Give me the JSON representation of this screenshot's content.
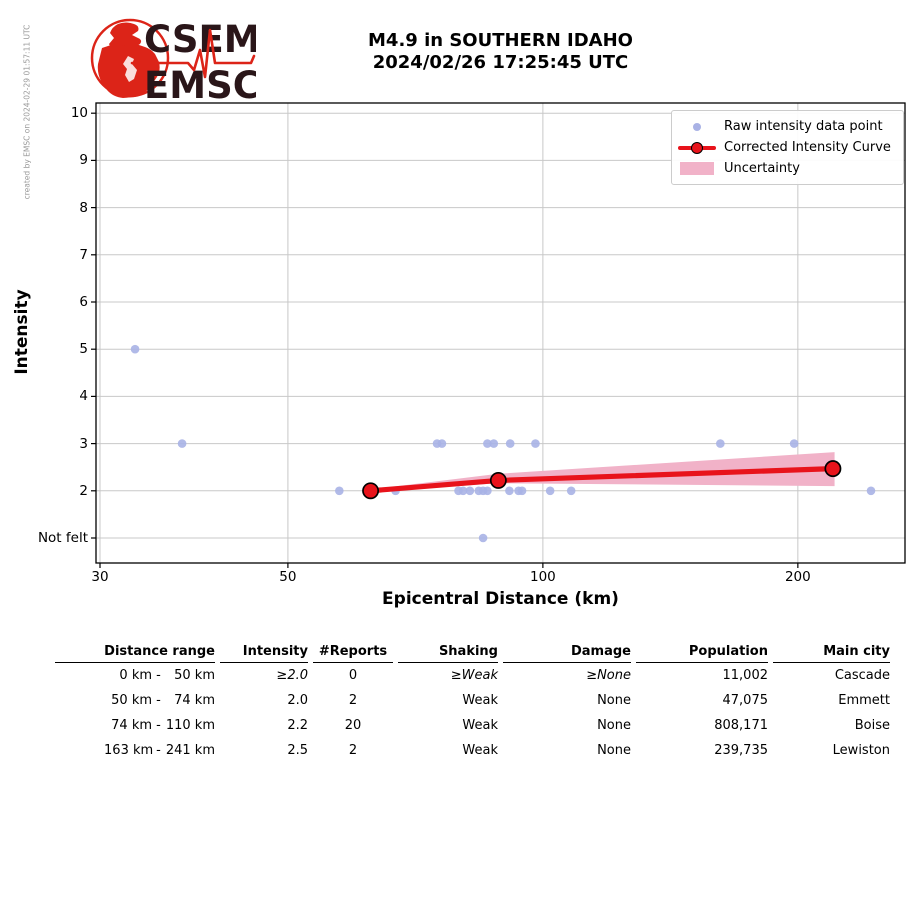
{
  "credit": "created by EMSC on 2024-02-29 01:57:11 UTC",
  "logo": {
    "acronym_top": "CSEM",
    "acronym_bottom": "EMSC",
    "red": "#dc2418",
    "dark": "#2a1619"
  },
  "title": {
    "line1": "M4.9 in SOUTHERN IDAHO",
    "line2": "2024/02/26 17:25:45 UTC"
  },
  "legend": {
    "raw_label": "Raw intensity data point",
    "curve_label": "Corrected Intensity Curve",
    "band_label": "Uncertainty"
  },
  "chart_data": {
    "type": "scatter",
    "title": "M4.9 in SOUTHERN IDAHO 2024/02/26 17:25:45 UTC",
    "xlabel": "Epicentral Distance (km)",
    "ylabel": "Intensity",
    "x_scale": "log",
    "xlim": [
      29.7,
      267
    ],
    "ylim": [
      0.47,
      10.22
    ],
    "grid": true,
    "legend_position": "upper right",
    "not_felt_value": 1,
    "xticks": [
      {
        "value": 30,
        "label": "30"
      },
      {
        "value": 50,
        "label": "50"
      },
      {
        "value": 100,
        "label": "100"
      },
      {
        "value": 200,
        "label": "200"
      }
    ],
    "yticks": [
      {
        "value": 10,
        "label": "10"
      },
      {
        "value": 9,
        "label": "9"
      },
      {
        "value": 8,
        "label": "8"
      },
      {
        "value": 7,
        "label": "7"
      },
      {
        "value": 6,
        "label": "6"
      },
      {
        "value": 5,
        "label": "5"
      },
      {
        "value": 4,
        "label": "4"
      },
      {
        "value": 3,
        "label": "3"
      },
      {
        "value": 2,
        "label": "2"
      },
      {
        "value": 1,
        "label": "Not felt"
      }
    ],
    "raw_points": [
      [
        33,
        5
      ],
      [
        37.5,
        3
      ],
      [
        57.5,
        2
      ],
      [
        67,
        2
      ],
      [
        75,
        3
      ],
      [
        76,
        3
      ],
      [
        79.5,
        2
      ],
      [
        80.5,
        2
      ],
      [
        82,
        2
      ],
      [
        84,
        2
      ],
      [
        85,
        2
      ],
      [
        86,
        2
      ],
      [
        86,
        3
      ],
      [
        87.5,
        3
      ],
      [
        91.3,
        2
      ],
      [
        91.5,
        3
      ],
      [
        93.6,
        2
      ],
      [
        94.5,
        2
      ],
      [
        98,
        3
      ],
      [
        102,
        2
      ],
      [
        108,
        2
      ],
      [
        85,
        1
      ],
      [
        162,
        3
      ],
      [
        198,
        3
      ],
      [
        244,
        2
      ]
    ],
    "corrected_curve": [
      [
        62.6,
        2.0
      ],
      [
        88.6,
        2.22
      ],
      [
        220,
        2.47
      ]
    ],
    "uncertainty_band": {
      "x": [
        62.6,
        88.6,
        221
      ],
      "upper": [
        2.03,
        2.36,
        2.82
      ],
      "lower": [
        1.98,
        2.16,
        2.1
      ]
    },
    "colors": {
      "raw_point": "#a9b2e5",
      "curve": "#e8131b",
      "band": "#f1b2c8",
      "grid": "#c8c8c8",
      "frame": "#000000"
    }
  },
  "table": {
    "headers": [
      "Distance range",
      "Intensity",
      "#Reports",
      "Shaking",
      "Damage",
      "Population",
      "Main city"
    ],
    "rows": [
      {
        "from": "0 km",
        "to": "50 km",
        "intensity": "≥2.0",
        "reports": "0",
        "shaking": "≥Weak",
        "damage": "≥None",
        "population": "11,002",
        "city": "Cascade",
        "assumed": true
      },
      {
        "from": "50 km",
        "to": "74 km",
        "intensity": "2.0",
        "reports": "2",
        "shaking": "Weak",
        "damage": "None",
        "population": "47,075",
        "city": "Emmett",
        "assumed": false
      },
      {
        "from": "74 km",
        "to": "110 km",
        "intensity": "2.2",
        "reports": "20",
        "shaking": "Weak",
        "damage": "None",
        "population": "808,171",
        "city": "Boise",
        "assumed": false
      },
      {
        "from": "163 km",
        "to": "241 km",
        "intensity": "2.5",
        "reports": "2",
        "shaking": "Weak",
        "damage": "None",
        "population": "239,735",
        "city": "Lewiston",
        "assumed": false
      }
    ]
  }
}
